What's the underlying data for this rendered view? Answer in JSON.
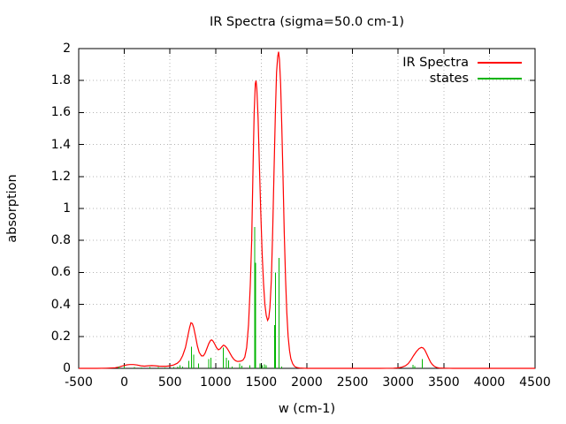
{
  "title": "IR Spectra (sigma=50.0 cm-1)",
  "colors": {
    "spectra": "#ff0000",
    "states": "#00b400",
    "grid": "#b4b4b4",
    "border": "#000000",
    "background": "#ffffff",
    "text": "#000000"
  },
  "legend": {
    "position": "top-right-inside",
    "items": [
      {
        "label": "IR Spectra",
        "color": "#ff0000"
      },
      {
        "label": "states",
        "color": "#00b400"
      }
    ]
  },
  "chart_data": {
    "type": "line",
    "title": "IR Spectra (sigma=50.0 cm-1)",
    "xlabel": "w (cm-1)",
    "ylabel": "absorption",
    "xlim": [
      -500,
      4500
    ],
    "ylim": [
      0,
      2
    ],
    "grid": true,
    "grid_style": "dotted-gray",
    "legend_position": "top-right",
    "x_ticks": [
      {
        "v": -500,
        "label": "-500"
      },
      {
        "v": 0,
        "label": "0"
      },
      {
        "v": 500,
        "label": "500"
      },
      {
        "v": 1000,
        "label": "1000"
      },
      {
        "v": 1500,
        "label": "1500"
      },
      {
        "v": 2000,
        "label": "2000"
      },
      {
        "v": 2500,
        "label": "2500"
      },
      {
        "v": 3000,
        "label": "3000"
      },
      {
        "v": 3500,
        "label": "3500"
      },
      {
        "v": 4000,
        "label": "4000"
      },
      {
        "v": 4500,
        "label": "4500"
      }
    ],
    "y_ticks": [
      {
        "v": 0,
        "label": "0"
      },
      {
        "v": 0.2,
        "label": "0.2"
      },
      {
        "v": 0.4,
        "label": "0.4"
      },
      {
        "v": 0.6,
        "label": "0.6"
      },
      {
        "v": 0.8,
        "label": "0.8"
      },
      {
        "v": 1,
        "label": "1"
      },
      {
        "v": 1.2,
        "label": "1.2"
      },
      {
        "v": 1.4,
        "label": "1.4"
      },
      {
        "v": 1.6,
        "label": "1.6"
      },
      {
        "v": 1.8,
        "label": "1.8"
      },
      {
        "v": 2,
        "label": "2"
      }
    ],
    "series": [
      {
        "name": "IR Spectra",
        "style": "line",
        "color": "#ff0000",
        "points": [
          [
            -500,
            0
          ],
          [
            -300,
            0
          ],
          [
            -200,
            0.001
          ],
          [
            -150,
            0.002
          ],
          [
            -100,
            0.004
          ],
          [
            -60,
            0.008
          ],
          [
            -30,
            0.013
          ],
          [
            0,
            0.018
          ],
          [
            30,
            0.022
          ],
          [
            60,
            0.024
          ],
          [
            100,
            0.024
          ],
          [
            140,
            0.021
          ],
          [
            180,
            0.016
          ],
          [
            220,
            0.014
          ],
          [
            260,
            0.016
          ],
          [
            300,
            0.017
          ],
          [
            340,
            0.016
          ],
          [
            380,
            0.014
          ],
          [
            420,
            0.013
          ],
          [
            460,
            0.013
          ],
          [
            500,
            0.016
          ],
          [
            540,
            0.021
          ],
          [
            580,
            0.032
          ],
          [
            610,
            0.048
          ],
          [
            640,
            0.08
          ],
          [
            670,
            0.13
          ],
          [
            695,
            0.2
          ],
          [
            715,
            0.255
          ],
          [
            730,
            0.285
          ],
          [
            745,
            0.28
          ],
          [
            760,
            0.255
          ],
          [
            780,
            0.2
          ],
          [
            800,
            0.14
          ],
          [
            820,
            0.1
          ],
          [
            845,
            0.078
          ],
          [
            865,
            0.078
          ],
          [
            885,
            0.095
          ],
          [
            905,
            0.125
          ],
          [
            925,
            0.155
          ],
          [
            945,
            0.175
          ],
          [
            958,
            0.178
          ],
          [
            972,
            0.17
          ],
          [
            990,
            0.152
          ],
          [
            1010,
            0.13
          ],
          [
            1030,
            0.116
          ],
          [
            1050,
            0.122
          ],
          [
            1070,
            0.136
          ],
          [
            1085,
            0.145
          ],
          [
            1100,
            0.142
          ],
          [
            1120,
            0.13
          ],
          [
            1140,
            0.113
          ],
          [
            1160,
            0.092
          ],
          [
            1180,
            0.072
          ],
          [
            1200,
            0.057
          ],
          [
            1220,
            0.047
          ],
          [
            1240,
            0.043
          ],
          [
            1260,
            0.044
          ],
          [
            1280,
            0.046
          ],
          [
            1300,
            0.052
          ],
          [
            1320,
            0.07
          ],
          [
            1340,
            0.13
          ],
          [
            1360,
            0.27
          ],
          [
            1380,
            0.52
          ],
          [
            1395,
            0.8
          ],
          [
            1410,
            1.25
          ],
          [
            1422,
            1.6
          ],
          [
            1435,
            1.78
          ],
          [
            1443,
            1.8
          ],
          [
            1452,
            1.75
          ],
          [
            1465,
            1.57
          ],
          [
            1480,
            1.27
          ],
          [
            1495,
            0.97
          ],
          [
            1510,
            0.72
          ],
          [
            1525,
            0.53
          ],
          [
            1540,
            0.4
          ],
          [
            1555,
            0.33
          ],
          [
            1570,
            0.3
          ],
          [
            1582,
            0.315
          ],
          [
            1595,
            0.38
          ],
          [
            1610,
            0.55
          ],
          [
            1625,
            0.85
          ],
          [
            1640,
            1.22
          ],
          [
            1655,
            1.6
          ],
          [
            1668,
            1.85
          ],
          [
            1680,
            1.95
          ],
          [
            1690,
            1.98
          ],
          [
            1700,
            1.93
          ],
          [
            1712,
            1.78
          ],
          [
            1725,
            1.52
          ],
          [
            1738,
            1.2
          ],
          [
            1752,
            0.85
          ],
          [
            1766,
            0.56
          ],
          [
            1780,
            0.35
          ],
          [
            1795,
            0.2
          ],
          [
            1810,
            0.11
          ],
          [
            1825,
            0.06
          ],
          [
            1845,
            0.028
          ],
          [
            1865,
            0.012
          ],
          [
            1890,
            0.005
          ],
          [
            1920,
            0.002
          ],
          [
            1960,
            0.001
          ],
          [
            2000,
            0
          ],
          [
            2200,
            0
          ],
          [
            2400,
            0
          ],
          [
            2600,
            0
          ],
          [
            2800,
            0
          ],
          [
            2950,
            0.001
          ],
          [
            3000,
            0.003
          ],
          [
            3040,
            0.007
          ],
          [
            3080,
            0.016
          ],
          [
            3110,
            0.03
          ],
          [
            3140,
            0.052
          ],
          [
            3170,
            0.08
          ],
          [
            3200,
            0.105
          ],
          [
            3230,
            0.124
          ],
          [
            3255,
            0.131
          ],
          [
            3275,
            0.127
          ],
          [
            3295,
            0.112
          ],
          [
            3315,
            0.088
          ],
          [
            3335,
            0.062
          ],
          [
            3355,
            0.04
          ],
          [
            3375,
            0.024
          ],
          [
            3395,
            0.013
          ],
          [
            3420,
            0.006
          ],
          [
            3450,
            0.002
          ],
          [
            3500,
            0.001
          ],
          [
            3600,
            0
          ],
          [
            3800,
            0
          ],
          [
            4000,
            0
          ],
          [
            4200,
            0
          ],
          [
            4500,
            0
          ]
        ]
      },
      {
        "name": "states",
        "style": "impulses",
        "color": "#00b400",
        "points": [
          [
            -60,
            0.01
          ],
          [
            0,
            0.014
          ],
          [
            110,
            0.008
          ],
          [
            190,
            0.006
          ],
          [
            280,
            0.009
          ],
          [
            370,
            0.007
          ],
          [
            445,
            0.006
          ],
          [
            540,
            0.008
          ],
          [
            585,
            0.01
          ],
          [
            610,
            0.018
          ],
          [
            640,
            0.012
          ],
          [
            707,
            0.048
          ],
          [
            736,
            0.135
          ],
          [
            762,
            0.085
          ],
          [
            811,
            0.03
          ],
          [
            924,
            0.057
          ],
          [
            947,
            0.066
          ],
          [
            1086,
            0.13
          ],
          [
            1118,
            0.066
          ],
          [
            1141,
            0.051
          ],
          [
            1180,
            0.012
          ],
          [
            1264,
            0.03
          ],
          [
            1287,
            0.016
          ],
          [
            1374,
            0.02
          ],
          [
            1429,
            0.885
          ],
          [
            1438,
            0.66
          ],
          [
            1485,
            0.03
          ],
          [
            1510,
            0.018
          ],
          [
            1535,
            0.025
          ],
          [
            1553,
            0.018
          ],
          [
            1645,
            0.27
          ],
          [
            1657,
            0.6
          ],
          [
            1695,
            0.69
          ],
          [
            1725,
            0.012
          ],
          [
            3163,
            0.022
          ],
          [
            3180,
            0.015
          ],
          [
            3264,
            0.057
          ]
        ]
      }
    ]
  }
}
